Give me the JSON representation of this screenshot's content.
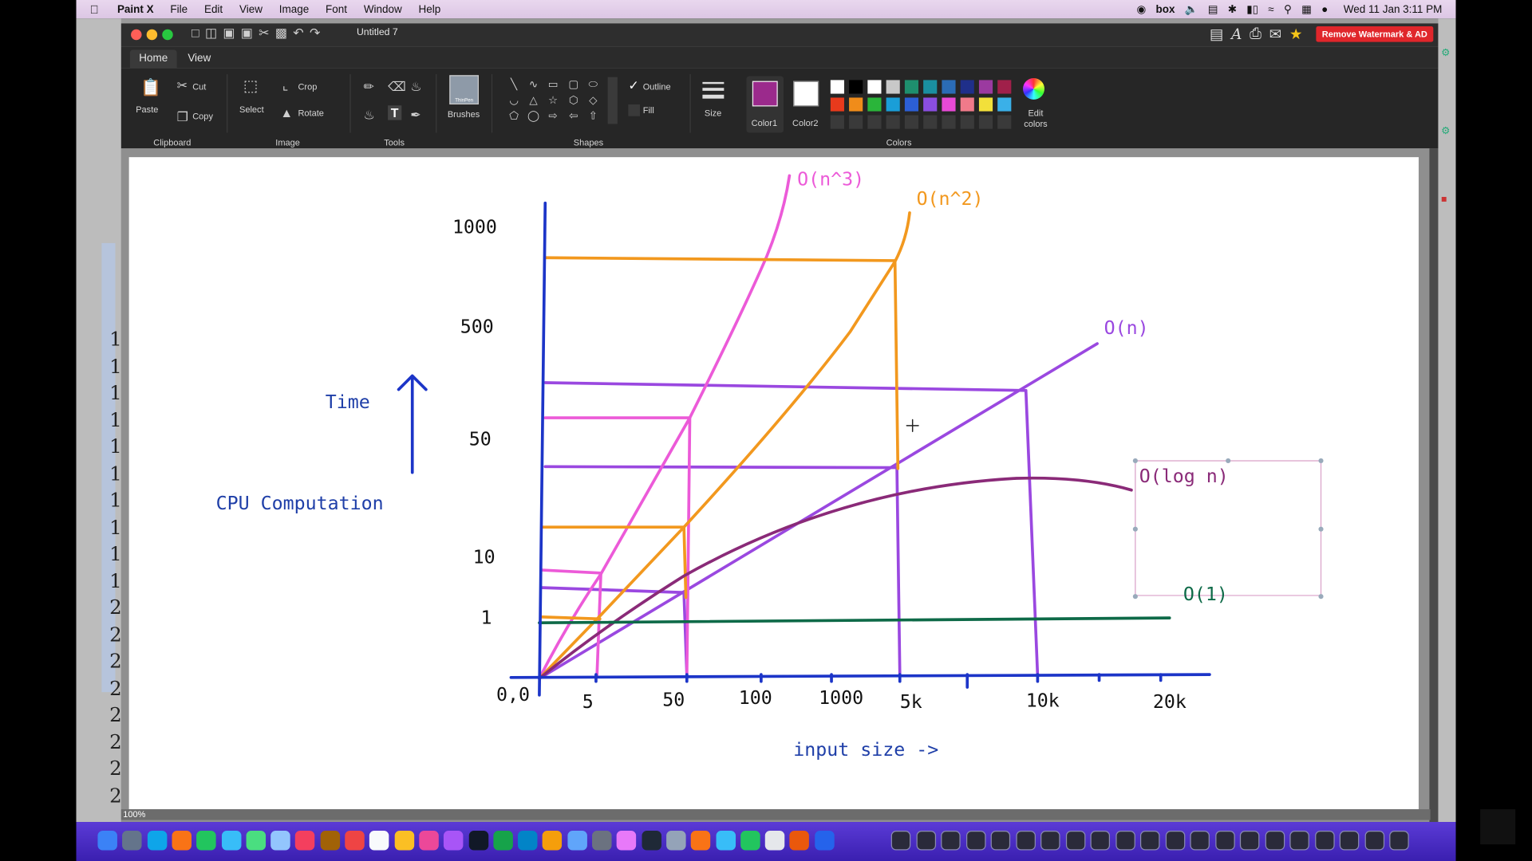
{
  "menubar": {
    "apple": "",
    "items": [
      "Paint X",
      "File",
      "Edit",
      "View",
      "Image",
      "Font",
      "Window",
      "Help"
    ],
    "status_icons": [
      "globe-icon",
      "box-icon",
      "volume-icon",
      "calendar-icon",
      "bluetooth-icon",
      "battery-icon",
      "wifi-icon",
      "search-icon",
      "control-center-icon",
      "siri-icon"
    ],
    "box_label": "box",
    "clock": "Wed 11 Jan  3:11 PM"
  },
  "window": {
    "title": "Untitled 7",
    "remove_button": "Remove Watermark & AD"
  },
  "ribbon": {
    "tabs": [
      "Home",
      "View"
    ],
    "clipboard": {
      "paste": "Paste",
      "cut": "Cut",
      "copy": "Copy",
      "group": "Clipboard"
    },
    "image": {
      "select": "Select",
      "crop": "Crop",
      "rotate": "Rotate",
      "group": "Image"
    },
    "tools": {
      "group": "Tools"
    },
    "brushes": {
      "label": "Brushes",
      "preview": "ThinPen"
    },
    "shapes": {
      "outline": "Outline",
      "fill": "Fill",
      "group": "Shapes"
    },
    "size": {
      "label": "Size"
    },
    "colors": {
      "color1_label": "Color1",
      "color2_label": "Color2",
      "edit_label": "Edit colors",
      "group": "Colors",
      "color1": "#9b2a8c",
      "color2": "#ffffff",
      "palette_row1": [
        "#ffffff",
        "#000000",
        "#ffffff",
        "#c8c8c8",
        "#1e8f6e",
        "#1a8fa0",
        "#2b6cb5",
        "#1f2f8a",
        "#9b3aa0",
        "#a0204a"
      ],
      "palette_row2": [
        "#e83a1c",
        "#f08c1a",
        "#2ab53a",
        "#1a9ed8",
        "#2c5fd6",
        "#8a4ee0",
        "#e84ad6",
        "#f07a8a",
        "#f2e03a",
        "#3ab0e8"
      ]
    }
  },
  "canvas": {
    "zoom": "100%",
    "left_numbers": [
      "1",
      "1",
      "1",
      "1",
      "1",
      "1",
      "1",
      "1",
      "1",
      "1",
      "2",
      "2",
      "2",
      "2",
      "2",
      "2",
      "2",
      "2"
    ],
    "drawing": {
      "labels": {
        "n3": "O(n^3)",
        "n2": "O(n^2)",
        "n": "O(n)",
        "logn": "O(log n)",
        "one": "O(1)",
        "time": "Time",
        "cpu": "CPU Computation",
        "input": "input size ->",
        "origin": "0,0"
      },
      "y_ticks": [
        "1000",
        "500",
        "50",
        "10",
        "1"
      ],
      "x_ticks": [
        "5",
        "50",
        "100",
        "1000",
        "5k",
        "10k",
        "20k"
      ],
      "colors": {
        "axis": "#1c35c8",
        "n3": "#ec5ad8",
        "n2": "#f2981e",
        "n": "#9a48e0",
        "logn": "#8a2a78",
        "one": "#0e6a48",
        "blue_text": "#1f3fa8"
      }
    }
  }
}
